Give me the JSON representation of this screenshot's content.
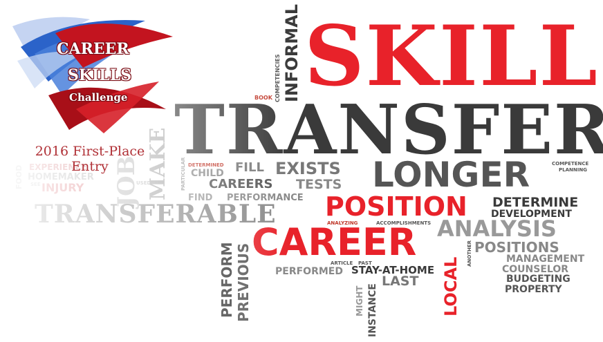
{
  "logo": {
    "line1": "CAREER",
    "line2": "SKILLS",
    "line3": "Challenge"
  },
  "entry_caption": {
    "line1": "2016 First-Place",
    "line2": "Entry"
  },
  "colors": {
    "red": "#e8222a",
    "dark": "#3a3a3a",
    "gray": "#8a8a8a",
    "light": "#bdbdbd",
    "logo_blue": "#2b63c9",
    "logo_red": "#c3141f"
  },
  "words": {
    "skills": "SKILLS",
    "transfer": "TRANSFER",
    "informal": "INFORMAL",
    "competencies": "COMPETENCIES",
    "book": "BOOK",
    "longer": "LONGER",
    "exists": "EXISTS",
    "fill": "FILL",
    "careers": "CAREERS",
    "tests": "TESTS",
    "determined": "DETERMINED",
    "child": "CHILD",
    "particular": "PARTICULAR",
    "used": "USED",
    "find": "FIND",
    "performance": "PERFORMANCE",
    "transferable": "TRANSFERABLE",
    "position": "POSITION",
    "determine": "DETERMINE",
    "development": "DEVELOPMENT",
    "analyzing": "ANALYZING",
    "accomplishments": "ACCOMPLISHMENTS",
    "analysis": "ANALYSIS",
    "competence": "COMPETENCE",
    "planning": "PLANNING",
    "career": "CAREER",
    "perform": "PERFORM",
    "previous": "PREVIOUS",
    "local": "LOCAL",
    "another": "ANOTHER",
    "positions": "POSITIONS",
    "management": "MANAGEMENT",
    "counselor": "COUNSELOR",
    "budgeting": "BUDGETING",
    "property": "PROPERTY",
    "article": "ARTICLE",
    "past": "PAST",
    "performed": "PERFORMED",
    "stay_at_home": "STAY-AT-HOME",
    "last": "LAST",
    "might": "MIGHT",
    "instance": "INSTANCE",
    "experience": "EXPERIENCE",
    "homemaker": "HOMEMAKER",
    "injury": "INJURY",
    "see": "SEE",
    "food": "FOOD",
    "job": "JOB",
    "make": "MAKE"
  }
}
